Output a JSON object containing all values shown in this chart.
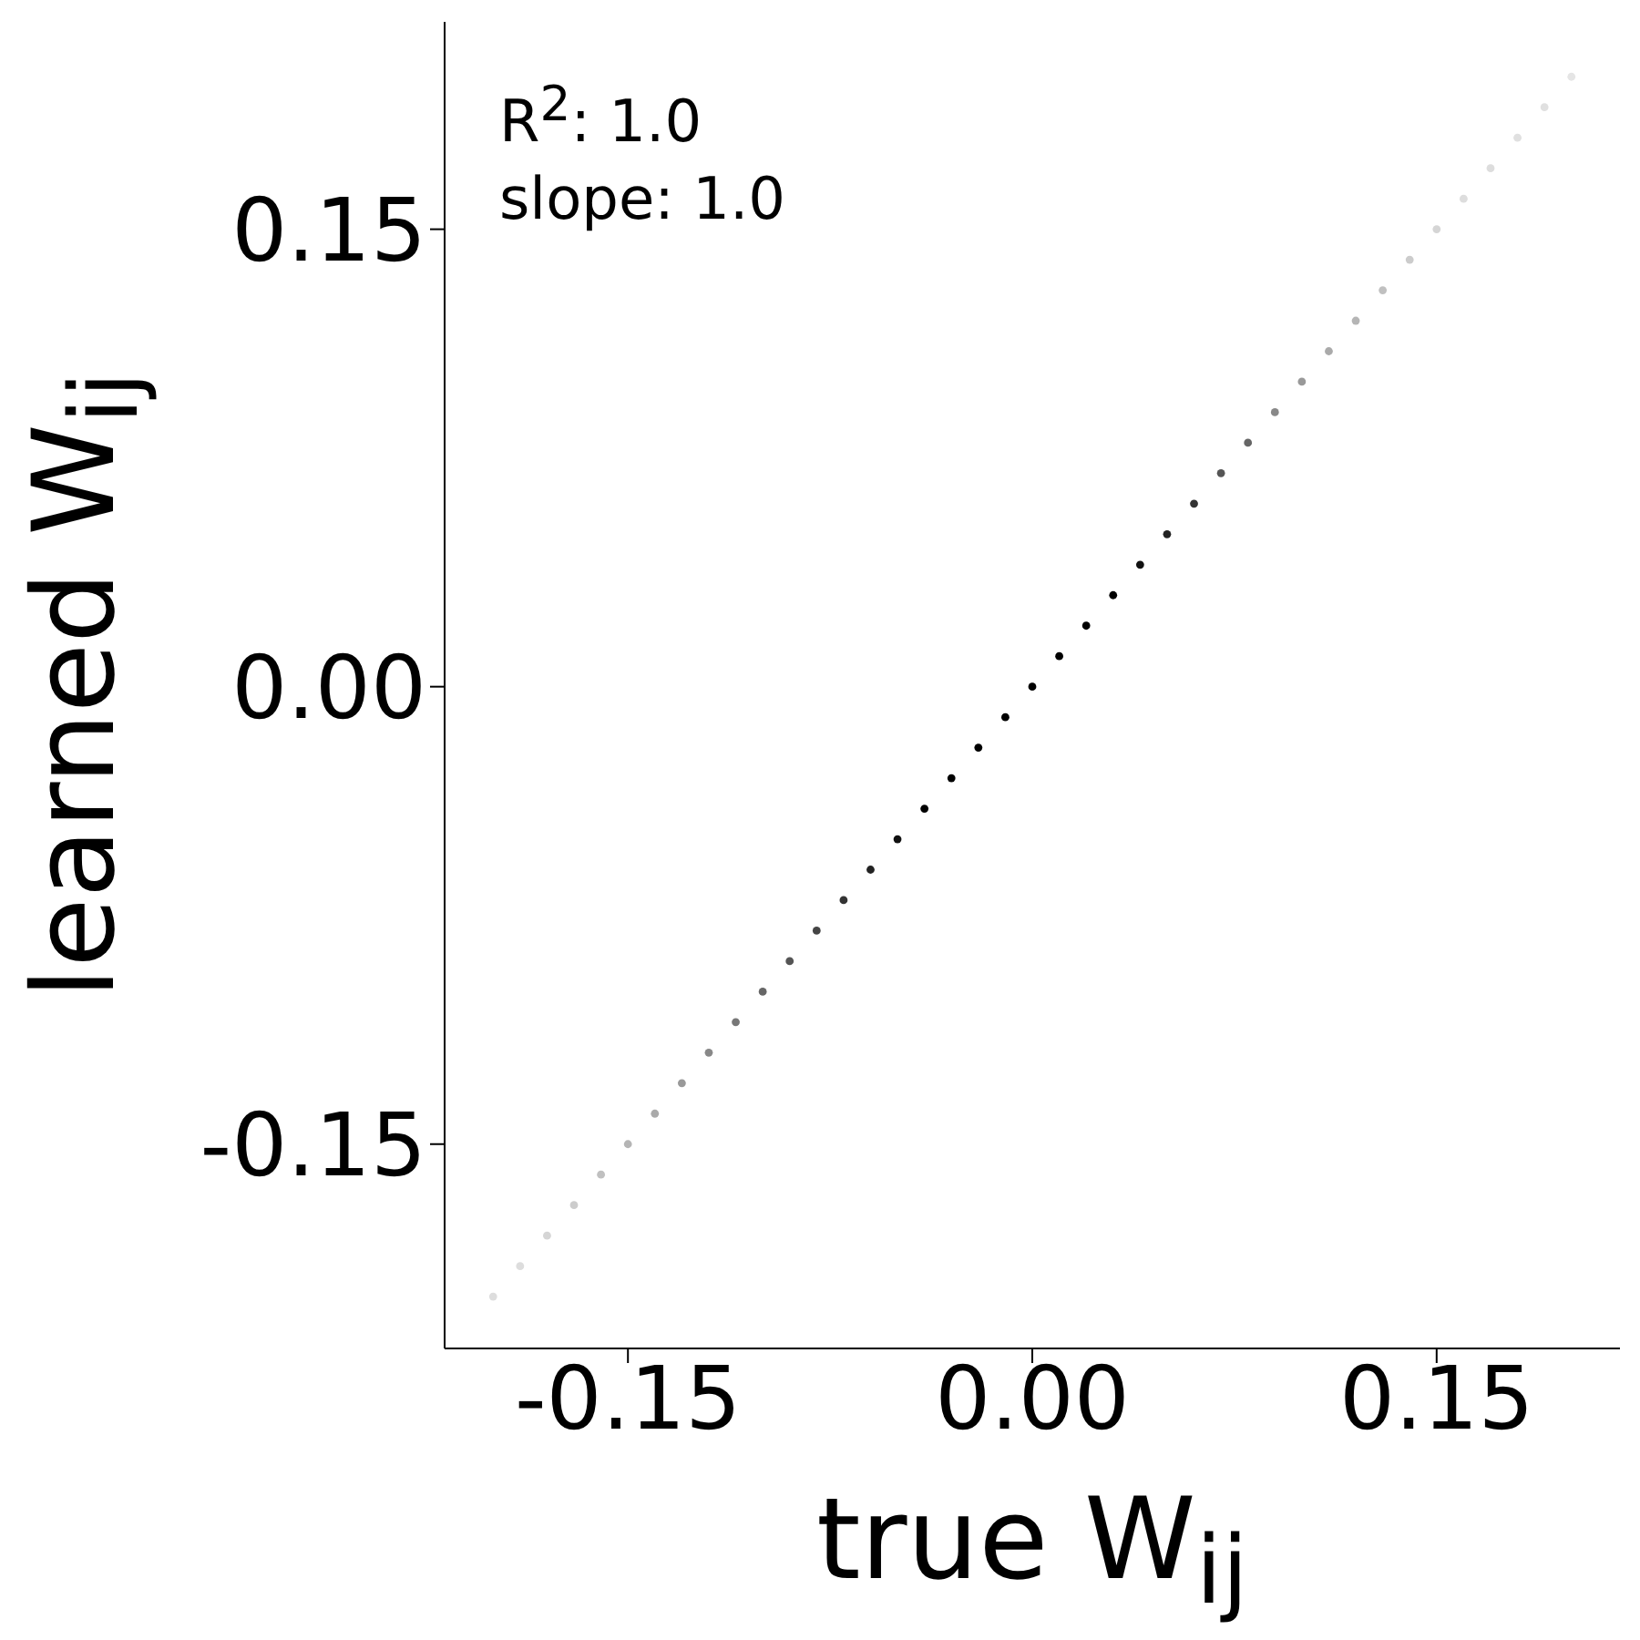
{
  "chart_data": {
    "type": "scatter",
    "xlabel": "true W$_{ij}$",
    "ylabel": "learned W$_{ij}$",
    "annotations": [
      "R$^{2}$: 1.0",
      "slope: 1.0"
    ],
    "x": [
      -0.2,
      -0.19,
      -0.18,
      -0.17,
      -0.16,
      -0.15,
      -0.14,
      -0.13,
      -0.12,
      -0.11,
      -0.1,
      -0.09,
      -0.08,
      -0.07,
      -0.06,
      -0.05,
      -0.04,
      -0.03,
      -0.02,
      -0.01,
      0,
      0.01,
      0.02,
      0.03,
      0.04,
      0.05,
      0.06,
      0.07,
      0.08,
      0.09,
      0.1,
      0.11,
      0.12,
      0.13,
      0.14,
      0.15,
      0.16,
      0.17,
      0.18,
      0.19,
      0.2
    ],
    "values": [
      -0.2,
      -0.19,
      -0.18,
      -0.17,
      -0.16,
      -0.15,
      -0.14,
      -0.13,
      -0.12,
      -0.11,
      -0.1,
      -0.09,
      -0.08,
      -0.07,
      -0.06,
      -0.05,
      -0.04,
      -0.03,
      -0.02,
      -0.01,
      0,
      0.01,
      0.02,
      0.03,
      0.04,
      0.05,
      0.06,
      0.07,
      0.08,
      0.09,
      0.1,
      0.11,
      0.12,
      0.13,
      0.14,
      0.15,
      0.16,
      0.17,
      0.18,
      0.19,
      0.2
    ],
    "colors": [
      "#dddddd",
      "#dddddd",
      "#d5d5d5",
      "#cccccc",
      "#c0c0c0",
      "#b5b5b5",
      "#aaaaaa",
      "#999999",
      "#888888",
      "#777777",
      "#666666",
      "#555555",
      "#444444",
      "#333333",
      "#222222",
      "#111111",
      "#000000",
      "#000000",
      "#000000",
      "#000000",
      "#000000",
      "#000000",
      "#000000",
      "#000000",
      "#111111",
      "#222222",
      "#333333",
      "#555555",
      "#666666",
      "#888888",
      "#999999",
      "#aaaaaa",
      "#b5b5b5",
      "#c0c0c0",
      "#cccccc",
      "#d5d5d5",
      "#dddddd",
      "#dddddd",
      "#e0e0e0",
      "#e0e0e0",
      "#e5e5e5"
    ],
    "xlim": [
      -0.218,
      0.218
    ],
    "ylim": [
      -0.217,
      0.218
    ],
    "xticks": [
      -0.15,
      {
        "value": 0,
        "label": "0.00"
      },
      0.15
    ],
    "yticks": [
      -0.15,
      {
        "value": 0,
        "label": "0.00"
      },
      0.15
    ],
    "marker": "circle",
    "grid": false
  }
}
